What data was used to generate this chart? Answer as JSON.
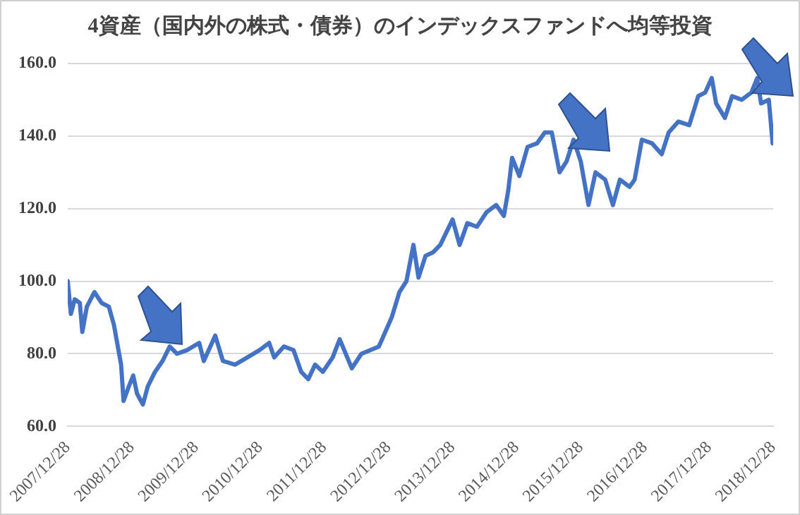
{
  "chart_data": {
    "type": "line",
    "title": "4資産（国内外の株式・債券）のインデックスファンドへ均等投資",
    "x": [
      "2007-12-28",
      "2008-01-15",
      "2008-02-06",
      "2008-03-06",
      "2008-03-20",
      "2008-04-15",
      "2008-05-28",
      "2008-07-08",
      "2008-08-18",
      "2008-09-16",
      "2008-10-27",
      "2008-11-10",
      "2008-12-10",
      "2009-01-04",
      "2009-01-26",
      "2009-02-28",
      "2009-03-28",
      "2009-05-08",
      "2009-06-20",
      "2009-07-31",
      "2009-09-10",
      "2009-11-06",
      "2010-01-15",
      "2010-02-10",
      "2010-04-16",
      "2010-05-30",
      "2010-08-07",
      "2010-10-16",
      "2010-12-24",
      "2011-02-17",
      "2011-03-18",
      "2011-05-12",
      "2011-07-06",
      "2011-08-19",
      "2011-09-28",
      "2011-11-06",
      "2011-12-20",
      "2012-02-14",
      "2012-03-25",
      "2012-06-02",
      "2012-07-27",
      "2012-11-03",
      "2013-01-15",
      "2013-02-28",
      "2013-04-09",
      "2013-05-19",
      "2013-06-17",
      "2013-07-27",
      "2013-09-09",
      "2013-10-19",
      "2013-12-28",
      "2014-02-06",
      "2014-03-22",
      "2014-05-16",
      "2014-07-09",
      "2014-09-02",
      "2014-10-16",
      "2014-11-10",
      "2014-12-02",
      "2015-01-12",
      "2015-02-28",
      "2015-04-23",
      "2015-06-06",
      "2015-07-16",
      "2015-08-29",
      "2015-10-08",
      "2015-11-17",
      "2015-12-28",
      "2016-02-10",
      "2016-03-21",
      "2016-05-15",
      "2016-06-28",
      "2016-08-07",
      "2016-10-01",
      "2016-10-30",
      "2016-12-10",
      "2017-02-06",
      "2017-04-02",
      "2017-05-12",
      "2017-07-06",
      "2017-09-06",
      "2017-10-27",
      "2017-12-06",
      "2018-01-12",
      "2018-02-06",
      "2018-03-28",
      "2018-05-08",
      "2018-07-02",
      "2018-08-26",
      "2018-09-28",
      "2018-10-20",
      "2018-12-03",
      "2018-12-25"
    ],
    "series": [
      {
        "color": "#4472c4",
        "values": [
          100,
          91,
          95,
          94,
          86,
          93,
          97,
          94,
          93,
          88,
          77,
          67,
          71,
          74,
          69,
          66,
          71,
          75,
          78,
          82,
          80,
          81,
          83,
          78,
          85,
          78,
          77,
          79,
          81,
          83,
          79,
          82,
          81,
          75,
          73,
          77,
          75,
          79,
          84,
          76,
          80,
          82,
          90,
          97,
          100,
          110,
          101,
          107,
          108,
          110,
          117,
          110,
          116,
          115,
          119,
          121,
          118,
          125,
          134,
          129,
          137,
          138,
          141,
          141,
          130,
          133,
          139,
          133,
          121,
          130,
          128,
          121,
          128,
          126,
          128,
          139,
          138,
          135,
          141,
          144,
          143,
          151,
          152,
          156,
          149,
          145,
          151,
          150,
          152,
          156,
          149,
          150,
          138
        ]
      }
    ],
    "xlim": [
      "2007-12-28",
      "2018-12-28"
    ],
    "xticks": [
      {
        "value": "2007-12-28",
        "label": "2007/12/28"
      },
      {
        "value": "2008-12-28",
        "label": "2008/12/28"
      },
      {
        "value": "2009-12-28",
        "label": "2009/12/28"
      },
      {
        "value": "2010-12-28",
        "label": "2010/12/28"
      },
      {
        "value": "2011-12-28",
        "label": "2011/12/28"
      },
      {
        "value": "2012-12-28",
        "label": "2012/12/28"
      },
      {
        "value": "2013-12-28",
        "label": "2013/12/28"
      },
      {
        "value": "2014-12-28",
        "label": "2014/12/28"
      },
      {
        "value": "2015-12-28",
        "label": "2015/12/28"
      },
      {
        "value": "2016-12-28",
        "label": "2016/12/28"
      },
      {
        "value": "2017-12-28",
        "label": "2017/12/28"
      },
      {
        "value": "2018-12-28",
        "label": "2018/12/28"
      }
    ],
    "ylim": [
      60,
      160
    ],
    "yticks": [
      {
        "value": 60,
        "label": "60.0"
      },
      {
        "value": 80,
        "label": "80.0"
      },
      {
        "value": 100,
        "label": "100.0"
      },
      {
        "value": 120,
        "label": "120.0"
      },
      {
        "value": 140,
        "label": "140.0"
      },
      {
        "value": 160,
        "label": "160.0"
      }
    ],
    "grid": "y",
    "marker": "none",
    "line_style": "solid"
  }
}
